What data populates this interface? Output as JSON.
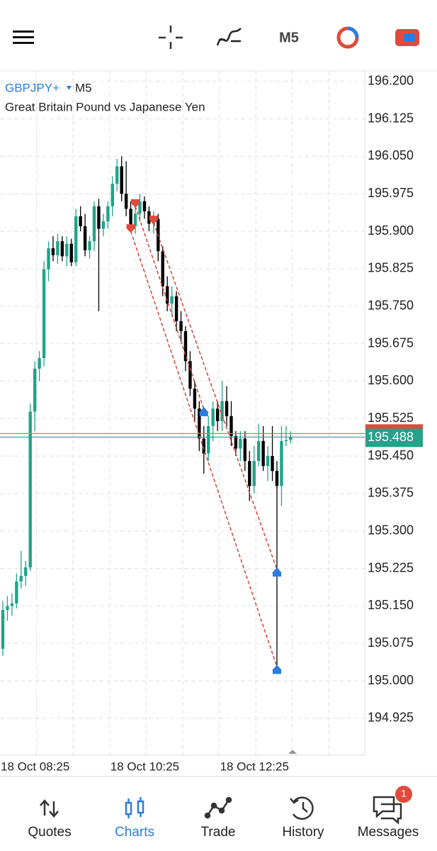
{
  "toolbar": {
    "timeframe": "M5"
  },
  "chart_data": {
    "type": "candlestick",
    "symbol": "GBPJPY+",
    "timeframe": "M5",
    "title": "Great Britain Pound vs Japanese Yen",
    "categories": [
      "18 Oct 08:25",
      null,
      null,
      null,
      null,
      null,
      null,
      null,
      null,
      null,
      null,
      null,
      null,
      null,
      null,
      null,
      null,
      null,
      null,
      null,
      null,
      null,
      null,
      null,
      "18 Oct 10:25",
      null,
      null,
      null,
      null,
      null,
      null,
      null,
      null,
      null,
      null,
      null,
      null,
      null,
      null,
      null,
      null,
      null,
      null,
      null,
      null,
      null,
      null,
      null,
      "18 Oct 12:25",
      null,
      null,
      null,
      null,
      null,
      null,
      null,
      null,
      null,
      null,
      null,
      null,
      null,
      null,
      null
    ],
    "open": [
      195.064,
      195.142,
      195.15,
      195.155,
      195.199,
      195.21,
      195.227,
      195.539,
      195.625,
      195.646,
      195.824,
      195.866,
      195.852,
      195.88,
      195.85,
      195.875,
      195.838,
      195.93,
      195.91,
      195.862,
      195.88,
      195.95,
      195.905,
      195.92,
      195.95,
      195.995,
      196.03,
      195.975,
      195.945,
      195.91,
      195.935,
      195.96,
      195.94,
      195.915,
      195.925,
      195.86,
      195.79,
      195.755,
      195.77,
      195.72,
      195.7,
      195.64,
      195.585,
      195.545,
      195.485,
      195.455,
      195.51,
      195.545,
      195.52,
      195.56,
      195.53,
      195.49,
      195.465,
      195.485,
      195.44,
      195.39,
      195.44,
      195.48,
      195.43,
      195.45,
      195.42,
      195.39,
      195.48,
      195.482
    ],
    "high": [
      195.16,
      195.17,
      195.175,
      195.215,
      195.26,
      195.24,
      195.555,
      195.64,
      195.66,
      195.84,
      195.88,
      195.89,
      195.895,
      195.89,
      195.89,
      195.885,
      195.945,
      195.95,
      195.935,
      195.89,
      195.96,
      195.965,
      195.935,
      195.96,
      196.01,
      196.045,
      196.05,
      196.04,
      195.96,
      195.95,
      195.975,
      195.97,
      195.95,
      195.94,
      195.935,
      195.87,
      195.81,
      195.79,
      195.78,
      195.74,
      195.71,
      195.66,
      195.6,
      195.56,
      195.51,
      195.53,
      195.56,
      195.56,
      195.6,
      195.59,
      195.56,
      195.5,
      195.5,
      195.5,
      195.46,
      195.47,
      195.515,
      195.51,
      195.47,
      195.51,
      195.44,
      195.51,
      195.51,
      195.5
    ],
    "low": [
      195.05,
      195.12,
      195.13,
      195.145,
      195.185,
      195.19,
      195.22,
      195.5,
      195.6,
      195.63,
      195.8,
      195.84,
      195.835,
      195.84,
      195.83,
      195.83,
      195.83,
      195.9,
      195.85,
      195.845,
      195.86,
      195.74,
      195.89,
      195.905,
      195.93,
      195.98,
      195.96,
      195.93,
      195.9,
      195.895,
      195.92,
      195.925,
      195.9,
      195.895,
      195.84,
      195.77,
      195.74,
      195.73,
      195.7,
      195.68,
      195.62,
      195.57,
      195.52,
      195.46,
      195.415,
      195.44,
      195.48,
      195.5,
      195.5,
      195.51,
      195.47,
      195.45,
      195.44,
      195.42,
      195.36,
      195.375,
      195.43,
      195.42,
      195.4,
      195.4,
      195.025,
      195.35,
      195.47,
      195.475
    ],
    "close": [
      195.142,
      195.15,
      195.155,
      195.199,
      195.21,
      195.227,
      195.539,
      195.625,
      195.646,
      195.824,
      195.866,
      195.852,
      195.88,
      195.85,
      195.875,
      195.838,
      195.93,
      195.91,
      195.862,
      195.88,
      195.95,
      195.905,
      195.92,
      195.95,
      195.995,
      196.03,
      195.975,
      195.945,
      195.91,
      195.935,
      195.96,
      195.94,
      195.915,
      195.925,
      195.86,
      195.79,
      195.755,
      195.77,
      195.72,
      195.7,
      195.64,
      195.585,
      195.545,
      195.485,
      195.455,
      195.51,
      195.545,
      195.52,
      195.56,
      195.53,
      195.49,
      195.465,
      195.485,
      195.44,
      195.39,
      195.44,
      195.48,
      195.43,
      195.45,
      195.42,
      195.39,
      195.48,
      195.482,
      195.488
    ],
    "up_color": "#22a38a",
    "down_color": "#000000",
    "ylim": [
      194.851,
      196.221
    ],
    "yticks": [
      {
        "value": 196.2,
        "label": "196.200"
      },
      {
        "value": 196.125,
        "label": "196.125"
      },
      {
        "value": 196.05,
        "label": "196.050"
      },
      {
        "value": 195.975,
        "label": "195.975"
      },
      {
        "value": 195.9,
        "label": "195.900"
      },
      {
        "value": 195.825,
        "label": "195.825"
      },
      {
        "value": 195.75,
        "label": "195.750"
      },
      {
        "value": 195.675,
        "label": "195.675"
      },
      {
        "value": 195.6,
        "label": "195.600"
      },
      {
        "value": 195.525,
        "label": "195.525"
      },
      {
        "value": 195.45,
        "label": "195.450"
      },
      {
        "value": 195.375,
        "label": "195.375"
      },
      {
        "value": 195.3,
        "label": "195.300"
      },
      {
        "value": 195.225,
        "label": "195.225"
      },
      {
        "value": 195.15,
        "label": "195.150"
      },
      {
        "value": 195.075,
        "label": "195.075"
      },
      {
        "value": 195.0,
        "label": "195.000"
      },
      {
        "value": 194.925,
        "label": "194.925"
      }
    ],
    "grid": true,
    "bid": 195.488,
    "ask": 195.495,
    "trades": [
      {
        "side": "sell",
        "open_index": 28,
        "open_price": 195.9,
        "close_index": 60,
        "close_price": 195.028
      },
      {
        "side": "sell",
        "open_index": 29,
        "open_price": 195.95,
        "close_index": 44,
        "close_price": 195.544
      },
      {
        "side": "sell",
        "open_index": 33,
        "open_price": 195.917,
        "close_index": 60,
        "close_price": 195.223
      }
    ]
  },
  "nav": {
    "items": [
      "Quotes",
      "Charts",
      "Trade",
      "History",
      "Messages"
    ],
    "active": 1,
    "badge": 1
  }
}
